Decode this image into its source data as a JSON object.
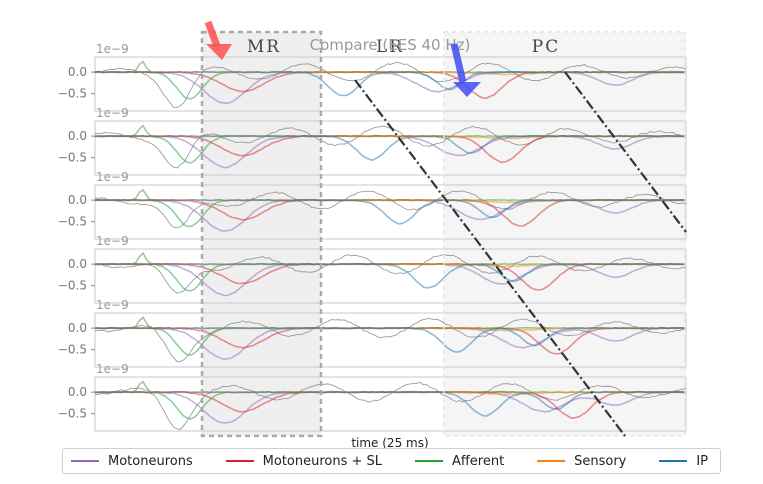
{
  "chart_data": {
    "type": "line",
    "title": "Compare (EES 40 Hz)",
    "xlabel": "time (25 ms)",
    "y_offset_label": "1e−9",
    "y_ticks": [
      "0.0",
      "−0.5"
    ],
    "ylim": [
      -0.9,
      0.35
    ],
    "region_labels": {
      "mr": "MR",
      "lr": "LR",
      "pc": "PC"
    },
    "colors": {
      "motoneurons": "#9467bd",
      "motoneurons_sl": "#d62728",
      "afferent": "#2ca02c",
      "sensory": "#ff7f0e",
      "ip": "#1f77b4",
      "red_arrow": "#ff4d4d",
      "blue_arrow": "#3d4df5"
    },
    "legend": [
      {
        "label": "Motoneurons",
        "color": "#9467bd"
      },
      {
        "label": "Motoneurons + SL",
        "color": "#d62728"
      },
      {
        "label": "Afferent",
        "color": "#2ca02c"
      },
      {
        "label": "Sensory",
        "color": "#ff7f0e"
      },
      {
        "label": "IP",
        "color": "#1f77b4"
      }
    ],
    "panels": 6,
    "series": [
      {
        "name": "Motoneurons",
        "color": "#9467bd"
      },
      {
        "name": "Motoneurons + SL",
        "color": "#d62728"
      },
      {
        "name": "Afferent",
        "color": "#2ca02c"
      },
      {
        "name": "Sensory",
        "color": "#ff7f0e"
      },
      {
        "name": "IP",
        "color": "#1f77b4"
      }
    ]
  }
}
